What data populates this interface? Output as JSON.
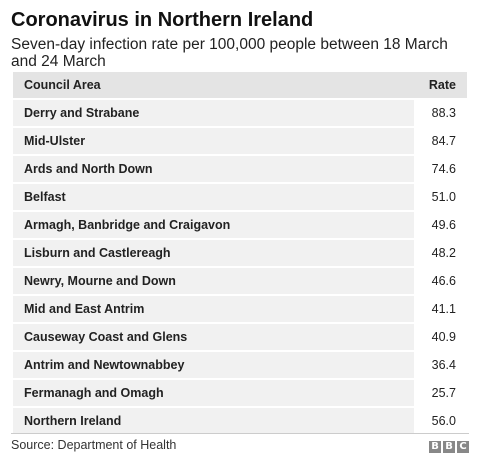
{
  "title": "Coronavirus in Northern Ireland",
  "subtitle": "Seven-day infection rate per 100,000 people between 18 March and 24 March",
  "source": "Source: Department of Health",
  "logo": [
    "B",
    "B",
    "C"
  ],
  "chart_data": {
    "type": "table",
    "columns": [
      "Council Area",
      "Rate"
    ],
    "rows": [
      {
        "area": "Derry and Strabane",
        "rate": "88.3"
      },
      {
        "area": "Mid-Ulster",
        "rate": "84.7"
      },
      {
        "area": "Ards and North Down",
        "rate": "74.6"
      },
      {
        "area": "Belfast",
        "rate": "51.0"
      },
      {
        "area": "Armagh, Banbridge and Craigavon",
        "rate": "49.6"
      },
      {
        "area": "Lisburn and Castlereagh",
        "rate": "48.2"
      },
      {
        "area": "Newry, Mourne and Down",
        "rate": "46.6"
      },
      {
        "area": "Mid and East Antrim",
        "rate": "41.1"
      },
      {
        "area": "Causeway Coast and Glens",
        "rate": "40.9"
      },
      {
        "area": "Antrim and Newtownabbey",
        "rate": "36.4"
      },
      {
        "area": "Fermanagh and Omagh",
        "rate": "25.7"
      },
      {
        "area": "Northern Ireland",
        "rate": "56.0"
      }
    ]
  }
}
